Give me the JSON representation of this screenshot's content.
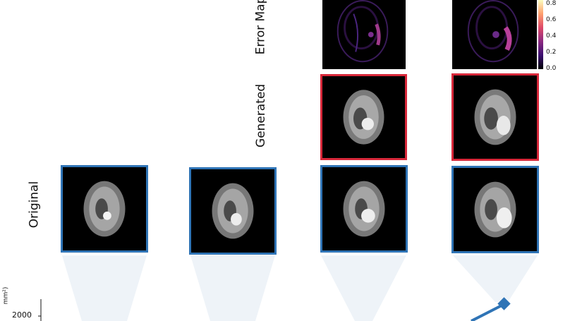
{
  "rows": {
    "error": "Error Map",
    "generated": "Generated",
    "original": "Original"
  },
  "colorbar": {
    "ticks": [
      "0.8",
      "0.6",
      "0.4",
      "0.2",
      "0.0"
    ]
  },
  "axis": {
    "y_tick": "2000",
    "y_label_fragment": "mm²)"
  },
  "colors": {
    "original_border": "#2f74b6",
    "generated_border": "#d8283a",
    "line": "#2f74b6",
    "cone": "#eef3f8"
  }
}
